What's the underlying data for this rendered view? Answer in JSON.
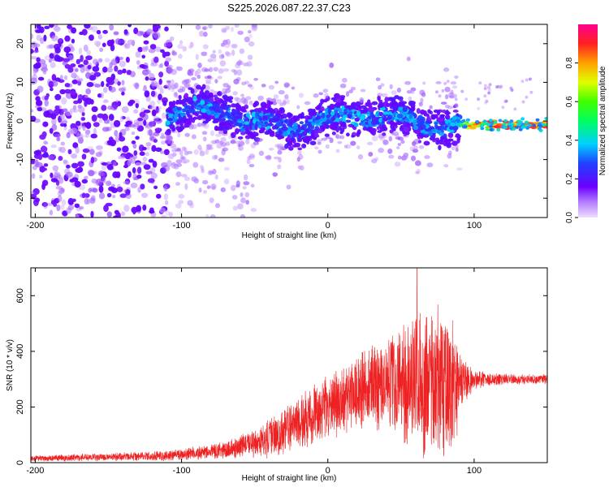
{
  "title": "S225.2026.087.22.37.C23",
  "colors": {
    "background": "#ffffff",
    "axis": "#000000",
    "snr_trace": "#ee2222",
    "spectrogram_low": "#7b1fff"
  },
  "chart_data": [
    {
      "type": "heatmap",
      "name": "spectrogram",
      "title": "S225.2026.087.22.37.C23",
      "xlabel": "Height of straight line (km)",
      "ylabel": "Frequency (Hz)",
      "xlim": [
        -203,
        150
      ],
      "ylim": [
        -25,
        25
      ],
      "x_ticks": [
        -200,
        -100,
        0,
        100
      ],
      "y_ticks": [
        -20,
        -10,
        0,
        10,
        20
      ],
      "colorbar": {
        "label": "Normalized spectral amplitude",
        "range": [
          0,
          1
        ],
        "ticks": [
          0.0,
          0.2,
          0.4,
          0.6,
          0.8
        ],
        "tick_labels": [
          "0.0",
          "0.2",
          "0.4",
          "0.6",
          "0.8"
        ],
        "colormap": "rainbow (purple to red)"
      },
      "bands": [
        {
          "x_range": [
            -203,
            -110
          ],
          "center_hz": 0,
          "spread_hz": 25,
          "amplitude": 0.1,
          "description": "scattered low-amplitude noise"
        },
        {
          "x_range": [
            -110,
            90
          ],
          "center_hz": 1,
          "spread_hz": 6,
          "amplitude": 0.3,
          "description": "dense band near 0 Hz"
        },
        {
          "x_range": [
            90,
            150
          ],
          "center_hz": -1,
          "spread_hz": 1,
          "amplitude": 0.85,
          "description": "strong narrow band"
        }
      ]
    },
    {
      "type": "line",
      "name": "snr",
      "xlabel": "Height of straight line (km)",
      "ylabel": "SNR (10 * v/v)",
      "xlim": [
        -203,
        150
      ],
      "ylim": [
        0,
        700
      ],
      "x_ticks": [
        -200,
        -100,
        0,
        100
      ],
      "y_ticks": [
        0,
        200,
        400,
        600
      ],
      "series": [
        {
          "name": "SNR",
          "envelope": {
            "x": [
              -203,
              -150,
              -110,
              -90,
              -70,
              -50,
              -30,
              -10,
              10,
              30,
              45,
              55,
              60,
              65,
              75,
              80,
              85,
              90,
              95,
              100,
              110,
              130,
              150
            ],
            "mid": [
              15,
              20,
              25,
              35,
              45,
              70,
              110,
              170,
              230,
              280,
              300,
              290,
              290,
              290,
              290,
              280,
              270,
              280,
              295,
              300,
              300,
              300,
              300
            ],
            "amp": [
              12,
              15,
              20,
              25,
              35,
              60,
              90,
              120,
              140,
              170,
              200,
              260,
              280,
              290,
              290,
              280,
              270,
              150,
              80,
              40,
              25,
              20,
              20
            ]
          },
          "peak": {
            "x": 61,
            "y": 700
          }
        }
      ]
    }
  ]
}
